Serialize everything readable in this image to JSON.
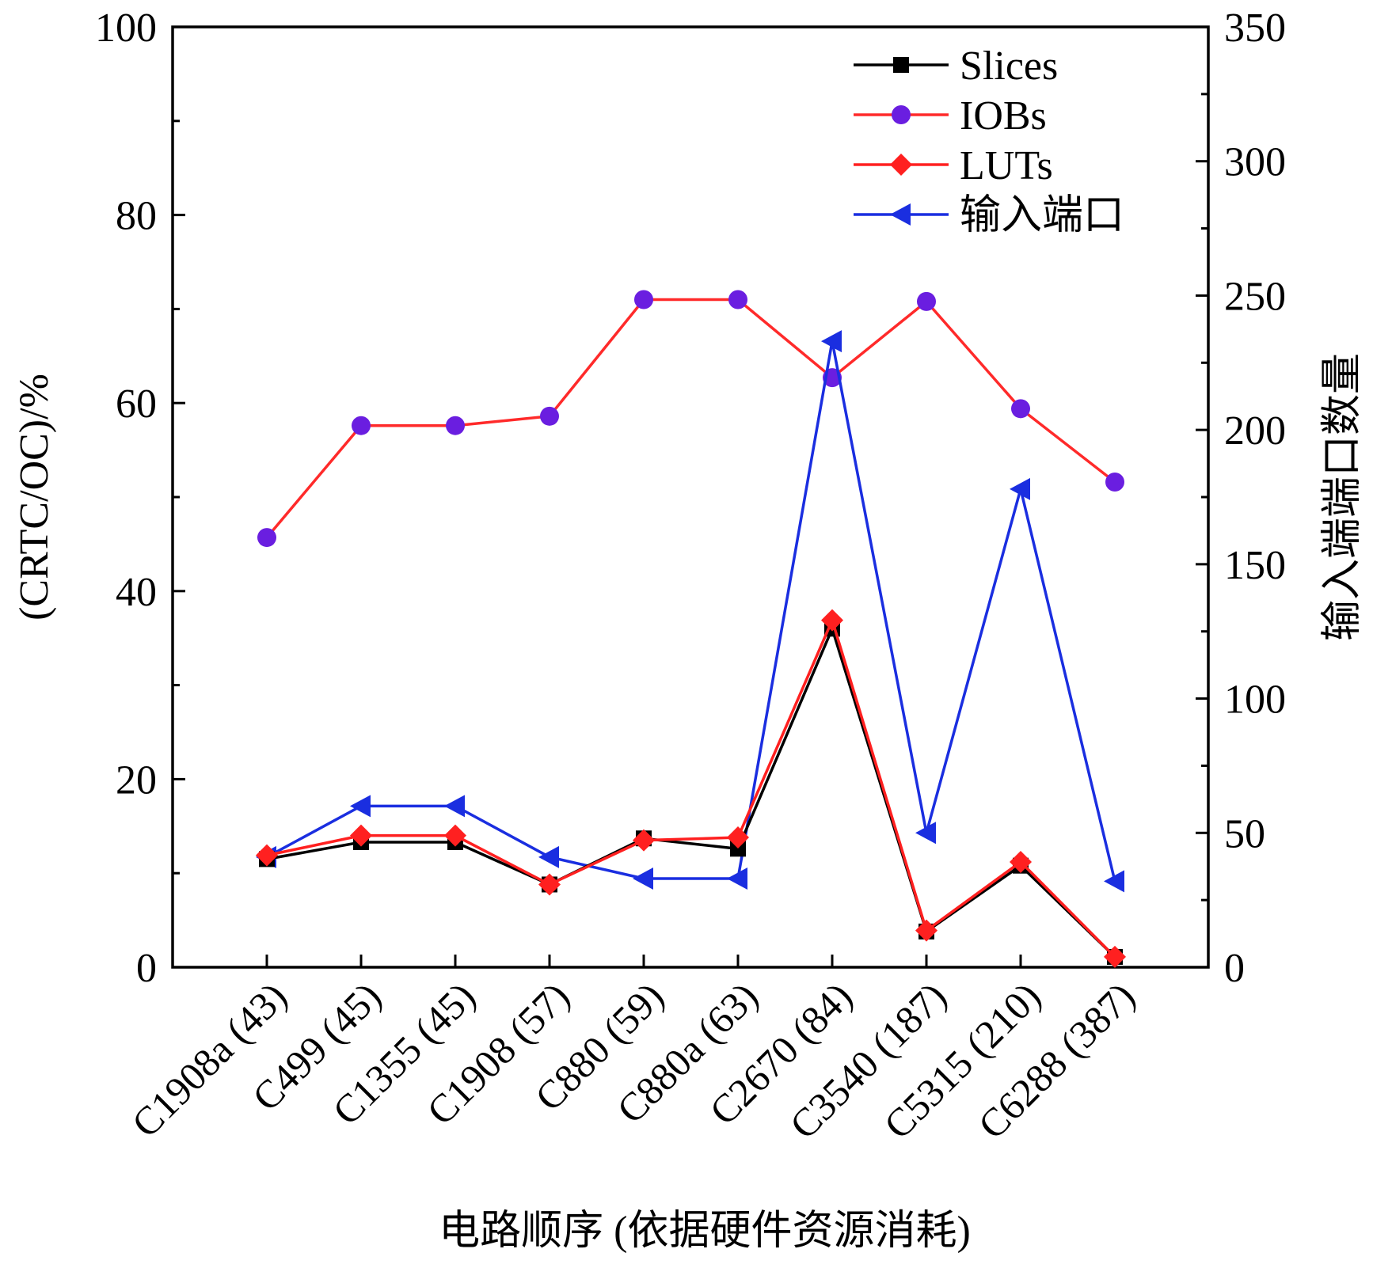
{
  "chart_data": {
    "type": "line",
    "categories": [
      "C1908a (43)",
      "C499 (45)",
      "C1355 (45)",
      "C1908 (57)",
      "C880 (59)",
      "C880a (63)",
      "C2670 (84)",
      "C3540 (187)",
      "C5315 (210)",
      "C6288 (387)"
    ],
    "xlabel": "电路顺序 (依据硬件资源消耗)",
    "ylabel": "(CRTC/OC)/%",
    "ylabel_right": "输入端端口数量",
    "ylim": [
      0,
      100
    ],
    "ylim_right": [
      0,
      350
    ],
    "yticks": [
      "0",
      "20",
      "40",
      "60",
      "80",
      "100"
    ],
    "yticks_right": [
      "0",
      "50",
      "100",
      "150",
      "200",
      "250",
      "300",
      "350"
    ],
    "legend_position": "top-right",
    "series": [
      {
        "name": "Slices",
        "axis": "left",
        "color": "#000000",
        "marker": "square",
        "values": [
          11.5,
          13.3,
          13.3,
          8.8,
          13.7,
          12.6,
          36.0,
          3.8,
          10.8,
          1.1
        ]
      },
      {
        "name": "IOBs",
        "axis": "left",
        "color": "#ff2a2a",
        "marker_color": "#6a1ee0",
        "marker": "circle",
        "values": [
          45.7,
          57.6,
          57.6,
          58.6,
          71.0,
          71.0,
          62.7,
          70.8,
          59.4,
          51.6
        ]
      },
      {
        "name": "LUTs",
        "axis": "left",
        "color": "#ff2020",
        "marker": "diamond",
        "values": [
          11.9,
          14.0,
          14.0,
          8.8,
          13.5,
          13.8,
          36.9,
          3.9,
          11.2,
          1.1
        ]
      },
      {
        "name": "输入端口",
        "axis": "right",
        "color": "#1a2ee0",
        "marker": "triangle-left",
        "values": [
          41,
          60,
          60,
          41,
          33,
          33,
          233,
          50,
          178,
          32
        ]
      }
    ]
  }
}
